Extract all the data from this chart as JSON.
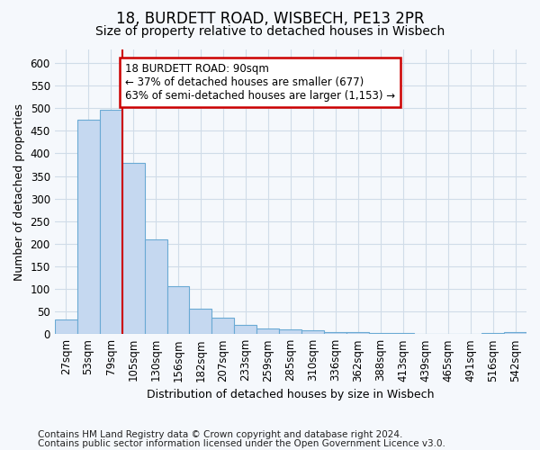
{
  "title1": "18, BURDETT ROAD, WISBECH, PE13 2PR",
  "title2": "Size of property relative to detached houses in Wisbech",
  "xlabel": "Distribution of detached houses by size in Wisbech",
  "ylabel": "Number of detached properties",
  "categories": [
    "27sqm",
    "53sqm",
    "79sqm",
    "105sqm",
    "130sqm",
    "156sqm",
    "182sqm",
    "207sqm",
    "233sqm",
    "259sqm",
    "285sqm",
    "310sqm",
    "336sqm",
    "362sqm",
    "388sqm",
    "413sqm",
    "439sqm",
    "465sqm",
    "491sqm",
    "516sqm",
    "542sqm"
  ],
  "values": [
    32,
    474,
    497,
    379,
    210,
    105,
    57,
    37,
    20,
    13,
    11,
    9,
    5,
    4,
    2,
    2,
    1,
    1,
    0,
    2,
    5
  ],
  "bar_color": "#c5d8f0",
  "bar_edge_color": "#6aaad4",
  "vline_x": 2.5,
  "vline_color": "#cc0000",
  "annotation_text": "18 BURDETT ROAD: 90sqm\n← 37% of detached houses are smaller (677)\n63% of semi-detached houses are larger (1,153) →",
  "annotation_box_color": "#ffffff",
  "annotation_box_edge": "#cc0000",
  "ylim": [
    0,
    630
  ],
  "yticks": [
    0,
    50,
    100,
    150,
    200,
    250,
    300,
    350,
    400,
    450,
    500,
    550,
    600
  ],
  "footer1": "Contains HM Land Registry data © Crown copyright and database right 2024.",
  "footer2": "Contains public sector information licensed under the Open Government Licence v3.0.",
  "bg_color": "#f5f8fc",
  "grid_color": "#d0dce8",
  "title1_fontsize": 12,
  "title2_fontsize": 10,
  "axis_label_fontsize": 9,
  "tick_fontsize": 8.5,
  "footer_fontsize": 7.5,
  "annotation_fontsize": 8.5
}
